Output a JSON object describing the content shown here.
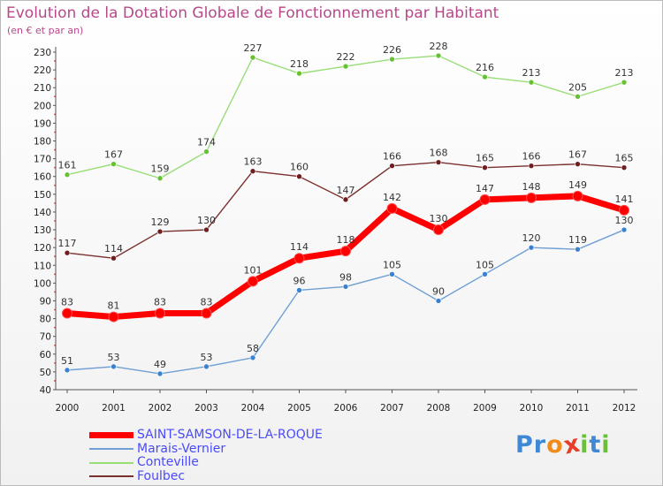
{
  "chart_data": {
    "type": "line",
    "title": "Evolution de la Dotation Globale de Fonctionnement par Habitant",
    "subtitle": "(en € et par an)",
    "xlabel": "",
    "ylabel": "",
    "ylim": [
      40,
      230
    ],
    "yticks": [
      40,
      50,
      60,
      70,
      80,
      90,
      100,
      110,
      120,
      130,
      140,
      150,
      160,
      170,
      180,
      190,
      200,
      210,
      220,
      230
    ],
    "grid": false,
    "categories": [
      "2000",
      "2001",
      "2002",
      "2003",
      "2004",
      "2005",
      "2006",
      "2007",
      "2008",
      "2009",
      "2010",
      "2011",
      "2012"
    ],
    "series": [
      {
        "name": "SAINT-SAMSON-DE-LA-ROQUE",
        "key": "saint-samson",
        "color": "#ff0000",
        "marker": "#ff0000",
        "legend_color": "#4a4aff",
        "thick": true,
        "values": [
          83,
          81,
          83,
          83,
          101,
          114,
          118,
          142,
          130,
          147,
          148,
          149,
          141
        ]
      },
      {
        "name": "Marais-Vernier",
        "key": "marais-vernier",
        "color": "#6f9fd4",
        "marker": "#3a82d0",
        "legend_color": "#4a4aff",
        "thick": false,
        "values": [
          51,
          53,
          49,
          53,
          58,
          96,
          98,
          105,
          90,
          105,
          120,
          119,
          130
        ]
      },
      {
        "name": "Conteville",
        "key": "conteville",
        "color": "#99dd77",
        "marker": "#66c233",
        "legend_color": "#4a4aff",
        "thick": false,
        "values": [
          161,
          167,
          159,
          174,
          227,
          218,
          222,
          226,
          228,
          216,
          213,
          205,
          213
        ]
      },
      {
        "name": "Foulbec",
        "key": "foulbec",
        "color": "#7b3030",
        "marker": "#6e1e1e",
        "legend_color": "#4a4aff",
        "thick": false,
        "values": [
          117,
          114,
          129,
          130,
          163,
          160,
          147,
          166,
          168,
          165,
          166,
          167,
          165
        ]
      }
    ]
  },
  "logo": {
    "letters": [
      {
        "char": "P",
        "color": "#3f88d6"
      },
      {
        "char": "r",
        "color": "#3f88d6"
      },
      {
        "char": "o",
        "color": "#f08c1e"
      },
      {
        "char": "x",
        "color": "#e6402a"
      },
      {
        "char": "i",
        "color": "#6cbf3c"
      },
      {
        "char": "t",
        "color": "#3f88d6"
      },
      {
        "char": "i",
        "color": "#6cbf3c"
      }
    ]
  }
}
